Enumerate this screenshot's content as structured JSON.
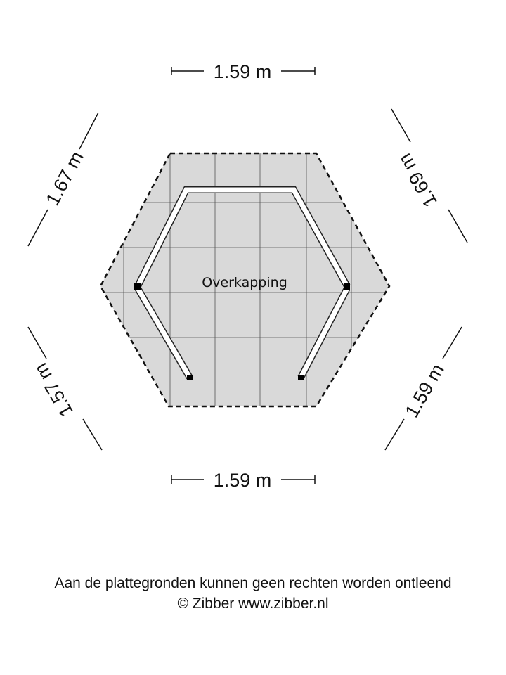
{
  "plan": {
    "room_label": "Overkapping",
    "dimensions": {
      "top": "1.59 m",
      "bottom": "1.59 m",
      "top_left": "1.67 m",
      "top_right": "1.69 m",
      "bottom_left": "1.57 m",
      "bottom_right": "1.59 m"
    },
    "colors": {
      "floor": "#d9d9d9",
      "wall": "#ffffff",
      "outline": "#111111"
    }
  },
  "footer": {
    "disclaimer": "Aan de plattegronden kunnen geen rechten worden ontleend",
    "copyright": "© Zibber www.zibber.nl"
  }
}
